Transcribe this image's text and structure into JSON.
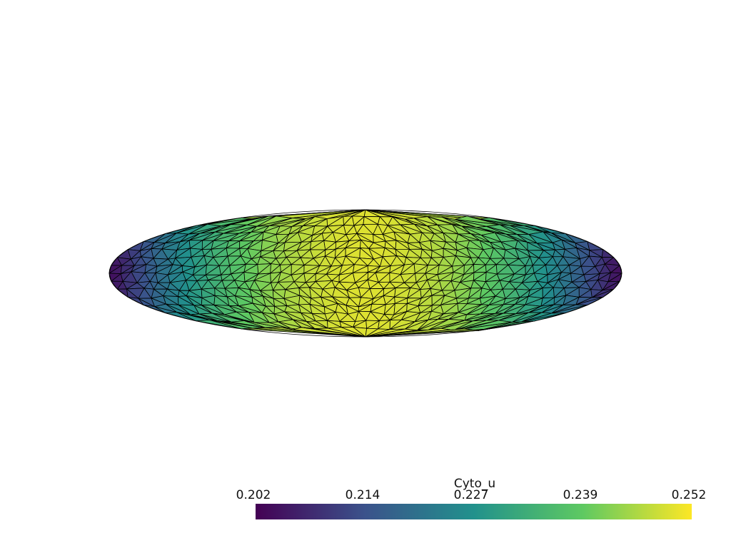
{
  "scene": {
    "background": "#ffffff",
    "edge_color": "#000000",
    "mesh_shape": "ellipse",
    "colormap": "viridis",
    "colormap_stops": [
      "#440154",
      "#3b528b",
      "#21918c",
      "#5ec962",
      "#fde725"
    ]
  },
  "scalar_bar": {
    "title": "Cyto_u",
    "range": [
      0.202,
      0.252
    ],
    "ticks": [
      "0.202",
      "0.214",
      "0.227",
      "0.239",
      "0.252"
    ]
  }
}
